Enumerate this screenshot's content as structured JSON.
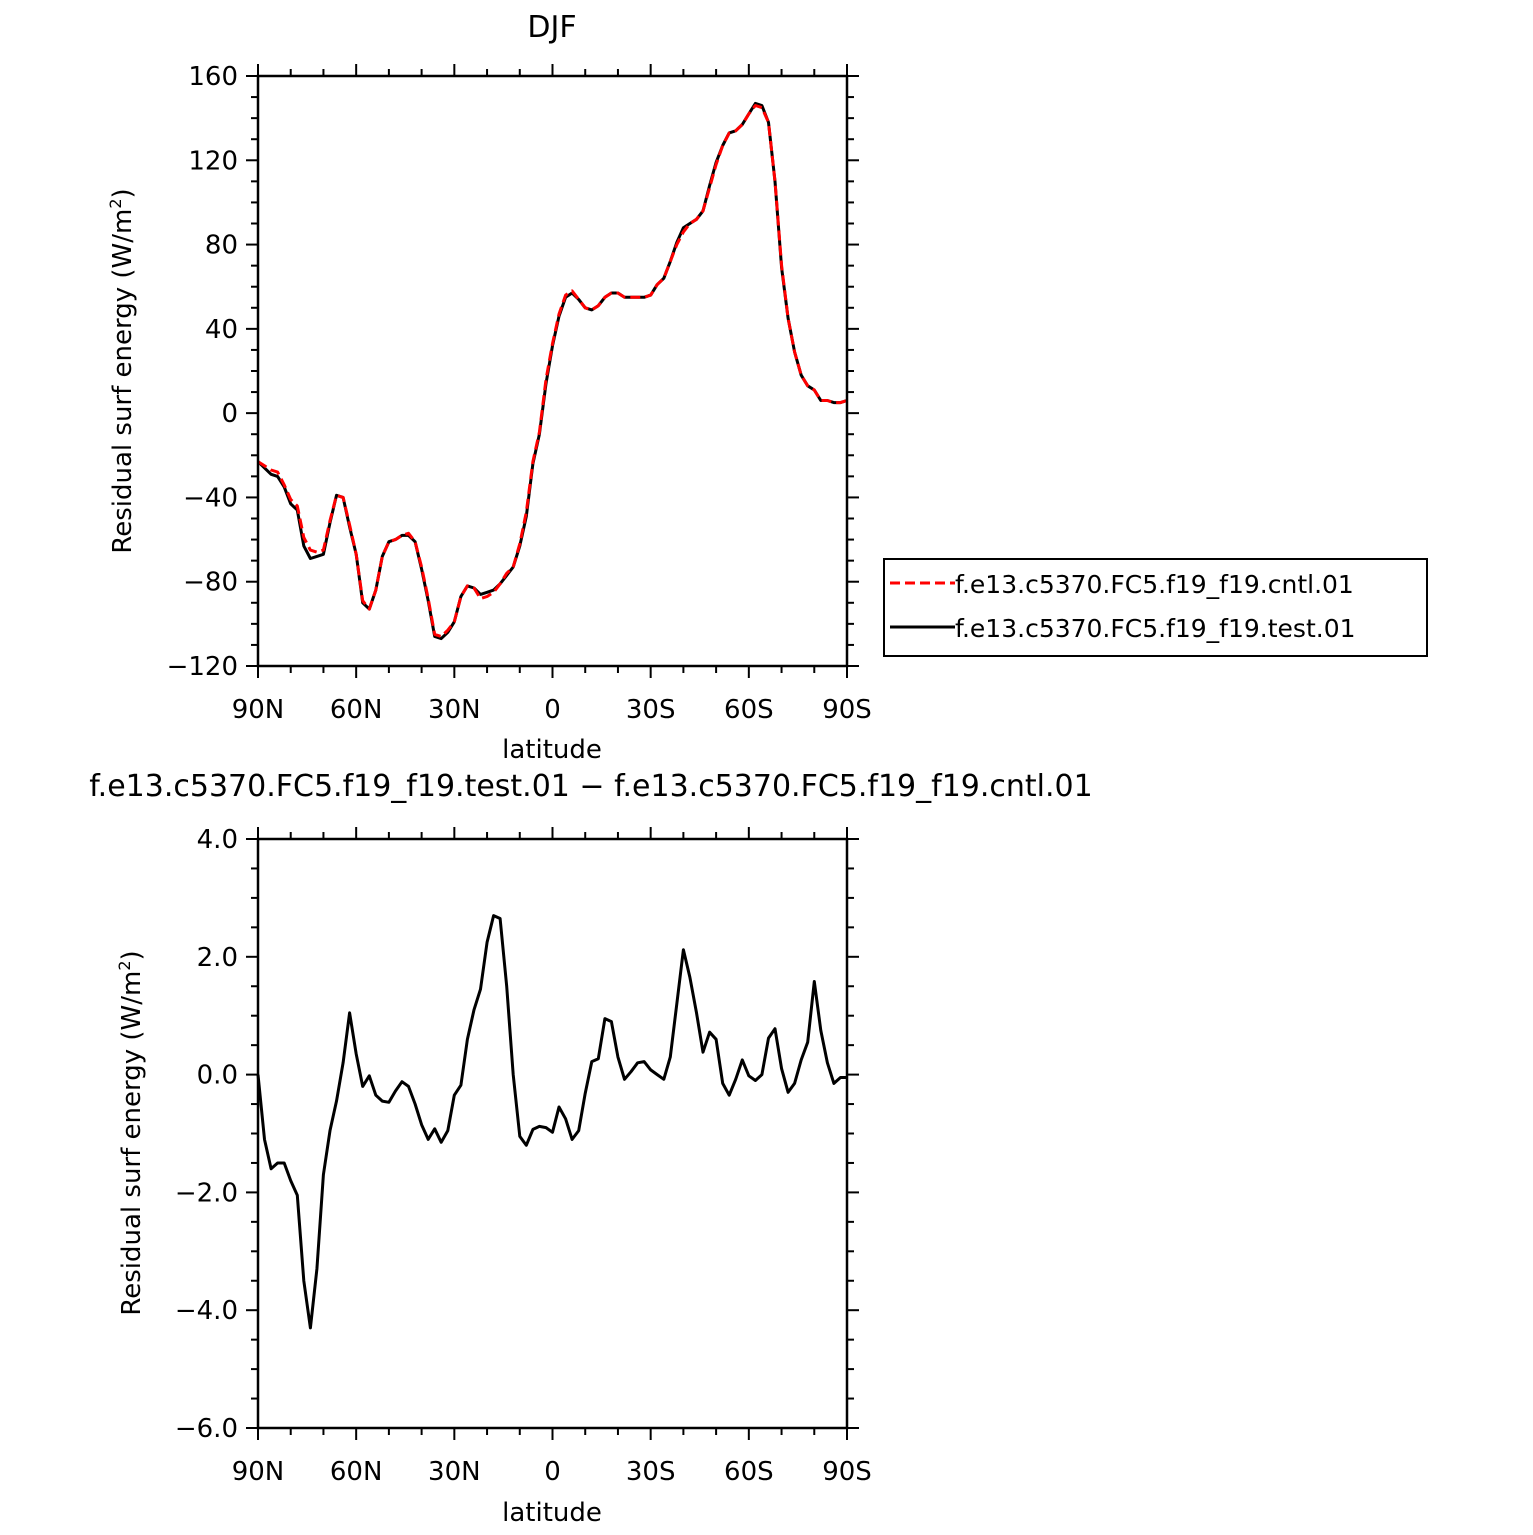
{
  "chart_data": [
    {
      "type": "line",
      "title": "DJF",
      "xlabel": "latitude",
      "ylabel": "Residual surf energy (W/m",
      "ylabel_sup": "2",
      "ylabel_close": ")",
      "xlim": [
        90,
        -90
      ],
      "ylim": [
        -120,
        160
      ],
      "x_ticks": [
        90,
        60,
        30,
        0,
        -30,
        -60,
        -90
      ],
      "x_tick_labels": [
        "90N",
        "60N",
        "30N",
        "0",
        "30S",
        "60S",
        "90S"
      ],
      "y_ticks": [
        -120,
        -80,
        -40,
        0,
        40,
        80,
        120,
        160
      ],
      "y_tick_labels": [
        "−120",
        "−80",
        "−40",
        "0",
        "40",
        "80",
        "120",
        "160"
      ],
      "x": [
        90,
        88,
        86,
        84,
        82,
        80,
        78,
        76,
        74,
        72,
        70,
        68,
        66,
        64,
        62,
        60,
        58,
        56,
        54,
        52,
        50,
        48,
        46,
        44,
        42,
        40,
        38,
        36,
        34,
        32,
        30,
        28,
        26,
        24,
        22,
        20,
        18,
        16,
        14,
        12,
        10,
        8,
        6,
        4,
        2,
        0,
        -2,
        -4,
        -6,
        -8,
        -10,
        -12,
        -14,
        -16,
        -18,
        -20,
        -22,
        -24,
        -26,
        -28,
        -30,
        -32,
        -34,
        -36,
        -38,
        -40,
        -42,
        -44,
        -46,
        -48,
        -50,
        -52,
        -54,
        -56,
        -58,
        -60,
        -62,
        -64,
        -66,
        -68,
        -70,
        -72,
        -74,
        -76,
        -78,
        -80,
        -82,
        -84,
        -86,
        -88,
        -90
      ],
      "legend_position": "right",
      "series": [
        {
          "name": "f.e13.c5370.FC5.f19_f19.cntl.01",
          "color": "#ff0000",
          "dash": "dashed",
          "values": [
            -23,
            -25,
            -27,
            -28,
            -34,
            -41,
            -44,
            -59,
            -65,
            -66,
            -65,
            -51,
            -39,
            -40,
            -53,
            -67,
            -89,
            -93,
            -84,
            -68,
            -61,
            -60,
            -58,
            -57,
            -61,
            -73,
            -88,
            -105,
            -106,
            -103,
            -99,
            -87,
            -82,
            -83,
            -88,
            -87,
            -85,
            -81,
            -76,
            -73,
            -62,
            -47,
            -23,
            -9,
            16,
            33,
            47,
            56,
            58,
            54,
            50,
            49,
            51,
            55,
            57,
            57,
            55,
            55,
            55,
            55,
            56,
            61,
            64,
            72,
            80,
            86,
            90,
            92,
            96,
            107,
            118,
            127,
            133,
            134,
            137,
            142,
            146,
            145,
            138,
            110,
            70,
            45,
            29,
            18,
            13,
            11,
            6,
            6,
            5,
            5,
            6
          ]
        },
        {
          "name": "f.e13.c5370.FC5.f19_f19.test.01",
          "color": "#000000",
          "dash": "solid",
          "values": [
            -23,
            -26,
            -29,
            -30,
            -35,
            -43,
            -46,
            -63,
            -69,
            -68,
            -67,
            -52,
            -39,
            -40,
            -54,
            -67,
            -90,
            -93,
            -84,
            -68,
            -61,
            -60,
            -58,
            -58,
            -61,
            -74,
            -89,
            -106,
            -107,
            -104,
            -99,
            -87,
            -82,
            -83,
            -86,
            -85,
            -84,
            -81,
            -77,
            -73,
            -63,
            -49,
            -24,
            -10,
            14,
            32,
            46,
            55,
            57,
            54,
            50,
            49,
            51,
            55,
            57,
            57,
            55,
            55,
            55,
            55,
            56,
            61,
            64,
            72,
            81,
            88,
            90,
            92,
            96,
            108,
            119,
            127,
            133,
            134,
            137,
            142,
            147,
            146,
            138,
            110,
            69,
            45,
            29,
            18,
            13,
            11,
            6,
            6,
            5,
            5,
            6
          ]
        }
      ]
    },
    {
      "type": "line",
      "title": "f.e13.c5370.FC5.f19_f19.test.01 − f.e13.c5370.FC5.f19_f19.cntl.01",
      "xlabel": "latitude",
      "ylabel": "Residual surf energy (W/m",
      "ylabel_sup": "2",
      "ylabel_close": ")",
      "xlim": [
        90,
        -90
      ],
      "ylim": [
        -6,
        4
      ],
      "x_ticks": [
        90,
        60,
        30,
        0,
        -30,
        -60,
        -90
      ],
      "x_tick_labels": [
        "90N",
        "60N",
        "30N",
        "0",
        "30S",
        "60S",
        "90S"
      ],
      "y_ticks": [
        -6,
        -4,
        -2,
        0,
        2,
        4
      ],
      "y_tick_labels": [
        "−6.0",
        "−4.0",
        "−2.0",
        "0.0",
        "2.0",
        "4.0"
      ],
      "x": [
        90,
        88,
        86,
        84,
        82,
        80,
        78,
        76,
        74,
        72,
        70,
        68,
        66,
        64,
        62,
        60,
        58,
        56,
        54,
        52,
        50,
        48,
        46,
        44,
        42,
        40,
        38,
        36,
        34,
        32,
        30,
        28,
        26,
        24,
        22,
        20,
        18,
        16,
        14,
        12,
        10,
        8,
        6,
        4,
        2,
        0,
        -2,
        -4,
        -6,
        -8,
        -10,
        -12,
        -14,
        -16,
        -18,
        -20,
        -22,
        -24,
        -26,
        -28,
        -30,
        -32,
        -34,
        -36,
        -38,
        -40,
        -42,
        -44,
        -46,
        -48,
        -50,
        -52,
        -54,
        -56,
        -58,
        -60,
        -62,
        -64,
        -66,
        -68,
        -70,
        -72,
        -74,
        -76,
        -78,
        -80,
        -82,
        -84,
        -86,
        -88,
        -90
      ],
      "series": [
        {
          "color": "#000000",
          "dash": "solid",
          "values": [
            0.0,
            -1.1,
            -1.6,
            -1.5,
            -1.5,
            -1.8,
            -2.05,
            -3.5,
            -4.3,
            -3.3,
            -1.7,
            -0.95,
            -0.45,
            0.2,
            1.05,
            0.35,
            -0.2,
            -0.02,
            -0.35,
            -0.45,
            -0.47,
            -0.28,
            -0.12,
            -0.2,
            -0.5,
            -0.85,
            -1.1,
            -0.92,
            -1.15,
            -0.95,
            -0.35,
            -0.18,
            0.6,
            1.1,
            1.45,
            2.25,
            2.7,
            2.65,
            1.5,
            0.0,
            -1.05,
            -1.2,
            -0.93,
            -0.88,
            -0.9,
            -0.98,
            -0.55,
            -0.75,
            -1.1,
            -0.95,
            -0.32,
            0.22,
            0.27,
            0.95,
            0.9,
            0.3,
            -0.08,
            0.05,
            0.2,
            0.22,
            0.08,
            0.0,
            -0.08,
            0.3,
            1.2,
            2.12,
            1.65,
            1.05,
            0.38,
            0.72,
            0.6,
            -0.15,
            -0.35,
            -0.08,
            0.25,
            -0.02,
            -0.1,
            0.0,
            0.62,
            0.78,
            0.1,
            -0.3,
            -0.15,
            0.25,
            0.55,
            1.58,
            0.75,
            0.2,
            -0.15,
            -0.05,
            -0.05
          ]
        }
      ]
    }
  ]
}
